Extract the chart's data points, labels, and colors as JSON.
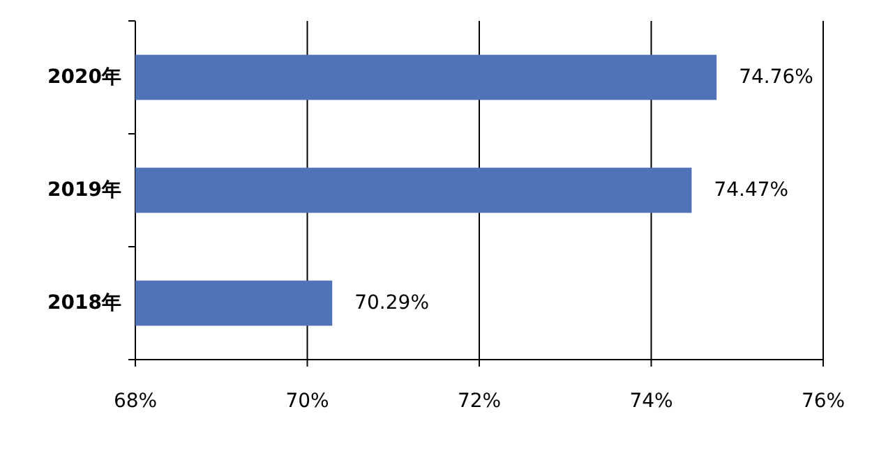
{
  "chart_data": {
    "type": "bar",
    "orientation": "horizontal",
    "categories": [
      "2020年",
      "2019年",
      "2018年"
    ],
    "values": [
      74.76,
      74.47,
      70.29
    ],
    "value_labels": [
      "74.76%",
      "74.47%",
      "70.29%"
    ],
    "color": "#4f72b8",
    "xlim": [
      68,
      76
    ],
    "xticks": [
      {
        "value": 68,
        "label": "68%"
      },
      {
        "value": 70,
        "label": "70%"
      },
      {
        "value": 72,
        "label": "72%"
      },
      {
        "value": 74,
        "label": "74%"
      },
      {
        "value": 76,
        "label": "76%"
      }
    ],
    "grid": "x"
  }
}
